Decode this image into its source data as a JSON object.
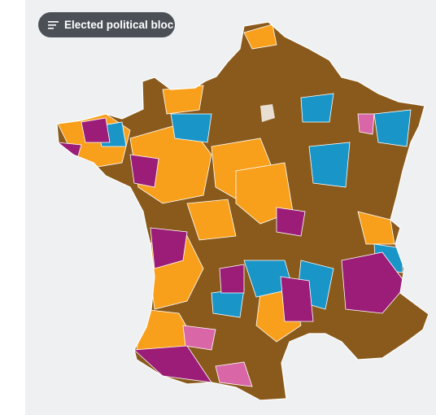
{
  "button": {
    "label": "Elected political bloc"
  }
}
